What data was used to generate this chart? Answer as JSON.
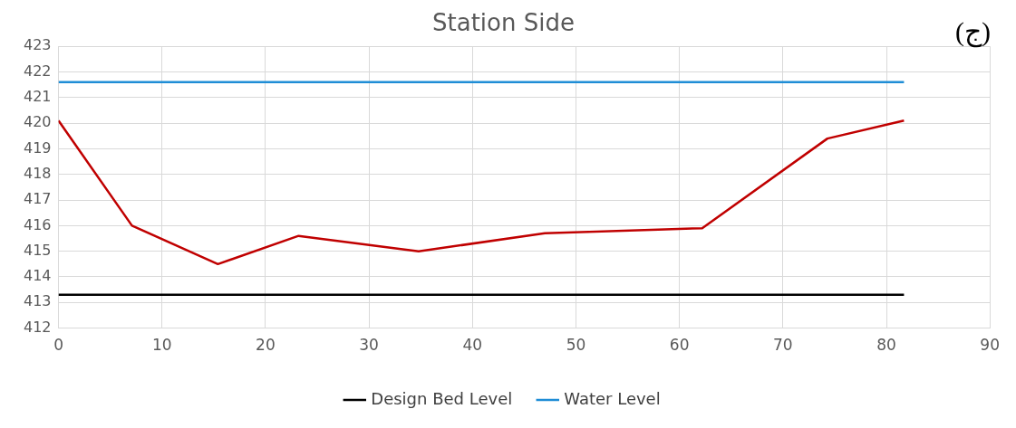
{
  "chart_data": {
    "type": "line",
    "title": "Station Side",
    "annotations": [
      "(ج)"
    ],
    "xlim": [
      0,
      90
    ],
    "xticks": [
      0,
      10,
      20,
      30,
      40,
      50,
      60,
      70,
      80,
      90
    ],
    "ylim": [
      412,
      423
    ],
    "yticks": [
      412,
      413,
      414,
      415,
      416,
      417,
      418,
      419,
      420,
      421,
      422,
      423
    ],
    "grid": true,
    "legend": "bottom",
    "marker": "none",
    "series": [
      {
        "color": "#c00000",
        "x": [
          0,
          7.1,
          15.4,
          23.2,
          34.8,
          47,
          62.2,
          74.3,
          81.7
        ],
        "values": [
          420.1,
          416.0,
          414.5,
          415.6,
          415.0,
          415.7,
          415.9,
          419.4,
          420.1
        ]
      },
      {
        "name": "Design Bed Level",
        "color": "#000000",
        "x": [
          0,
          81.7
        ],
        "values": [
          413.3,
          413.3
        ]
      },
      {
        "name": "Water Level",
        "color": "#1f8dd6",
        "x": [
          0,
          81.7
        ],
        "values": [
          421.6,
          421.6
        ]
      }
    ]
  }
}
